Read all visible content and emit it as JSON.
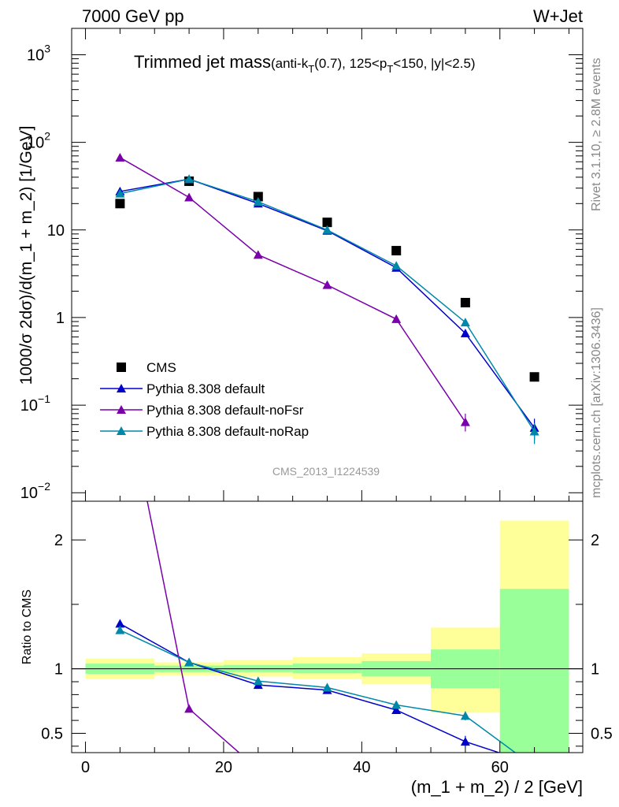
{
  "header": {
    "left": "7000 GeV pp",
    "right": "W+Jet"
  },
  "side_text": {
    "rivet": "Rivet 3.1.10, ≥ 2.8M events",
    "mcplots": "mcplots.cern.ch [arXiv:1306.3436]"
  },
  "colors": {
    "cms": "#000000",
    "default": "#0000cc",
    "noFsr": "#7a00aa",
    "noRap": "#0088aa",
    "band_inner": "#99ff99",
    "band_outer": "#ffff99"
  },
  "chart_data": [
    {
      "type": "scatter",
      "title_main": "Trimmed jet mass",
      "title_sub_parts": [
        "(anti-k",
        "T",
        "(0.7), 125<p",
        "T",
        "<150, |y|<2.5)"
      ],
      "ylabel": "1000/σ 2dσ)/d(m_1 + m_2) [1/GeV]",
      "yscale": "log",
      "ylim": [
        0.008,
        2000
      ],
      "xlim": [
        -2,
        72
      ],
      "y_ticks": [
        {
          "v": 0.01,
          "base": "10",
          "exp": "−2"
        },
        {
          "v": 0.1,
          "base": "10",
          "exp": "−1"
        },
        {
          "v": 1,
          "base": "1",
          "exp": ""
        },
        {
          "v": 10,
          "base": "10",
          "exp": ""
        },
        {
          "v": 100,
          "base": "10",
          "exp": "2"
        },
        {
          "v": 1000,
          "base": "10",
          "exp": "3"
        }
      ],
      "watermark": "CMS_2013_I1224539",
      "x": [
        5,
        15,
        25,
        35,
        45,
        55,
        65
      ],
      "series": [
        {
          "name": "CMS",
          "key": "cms",
          "marker": "square",
          "values": [
            20,
            36,
            24,
            12.2,
            5.8,
            1.48,
            0.21
          ]
        },
        {
          "name": "Pythia 8.308 default",
          "key": "default",
          "marker": "triangle",
          "values": [
            27.5,
            38,
            20,
            9.8,
            3.7,
            0.66,
            0.055
          ]
        },
        {
          "name": "Pythia 8.308 default-noFsr",
          "key": "noFsr",
          "marker": "triangle",
          "values": [
            67,
            23.5,
            5.2,
            2.35,
            0.96,
            0.064,
            null
          ]
        },
        {
          "name": "Pythia 8.308 default-noRap",
          "key": "noRap",
          "marker": "triangle",
          "values": [
            26,
            38,
            21,
            10,
            3.9,
            0.88,
            0.05
          ]
        }
      ]
    },
    {
      "type": "line",
      "ylabel": "Ratio to CMS",
      "ylim": [
        0.35,
        2.3
      ],
      "xlim": [
        -2,
        72
      ],
      "xlabel": "(m_1 + m_2) / 2 [GeV]",
      "x_ticks": [
        0,
        20,
        40,
        60
      ],
      "y_ticks": [
        0.5,
        1,
        2
      ],
      "bands": [
        {
          "x0": 0,
          "x1": 10,
          "inner": [
            0.96,
            1.04
          ],
          "outer": [
            0.92,
            1.08
          ]
        },
        {
          "x0": 10,
          "x1": 20,
          "inner": [
            0.975,
            1.025
          ],
          "outer": [
            0.95,
            1.05
          ]
        },
        {
          "x0": 20,
          "x1": 30,
          "inner": [
            0.975,
            1.03
          ],
          "outer": [
            0.94,
            1.07
          ]
        },
        {
          "x0": 30,
          "x1": 40,
          "inner": [
            0.965,
            1.04
          ],
          "outer": [
            0.92,
            1.09
          ]
        },
        {
          "x0": 40,
          "x1": 50,
          "inner": [
            0.94,
            1.06
          ],
          "outer": [
            0.88,
            1.12
          ]
        },
        {
          "x0": 50,
          "x1": 60,
          "inner": [
            0.85,
            1.15
          ],
          "outer": [
            0.66,
            1.32
          ]
        },
        {
          "x0": 60,
          "x1": 70,
          "inner": [
            0.35,
            1.62
          ],
          "outer": [
            0.35,
            2.15
          ]
        }
      ],
      "x": [
        5,
        15,
        25,
        35,
        45,
        55,
        65
      ],
      "series": [
        {
          "name": "Pythia 8.308 default",
          "key": "default",
          "values": [
            1.35,
            1.05,
            0.875,
            0.835,
            0.68,
            0.435,
            0.26
          ]
        },
        {
          "name": "Pythia 8.308 default-noFsr",
          "key": "noFsr",
          "values": [
            3.35,
            0.69,
            0.22,
            null,
            null,
            null,
            null
          ]
        },
        {
          "name": "Pythia 8.308 default-noRap",
          "key": "noRap",
          "values": [
            1.3,
            1.05,
            0.905,
            0.855,
            0.72,
            0.635,
            0.24
          ]
        }
      ]
    }
  ]
}
